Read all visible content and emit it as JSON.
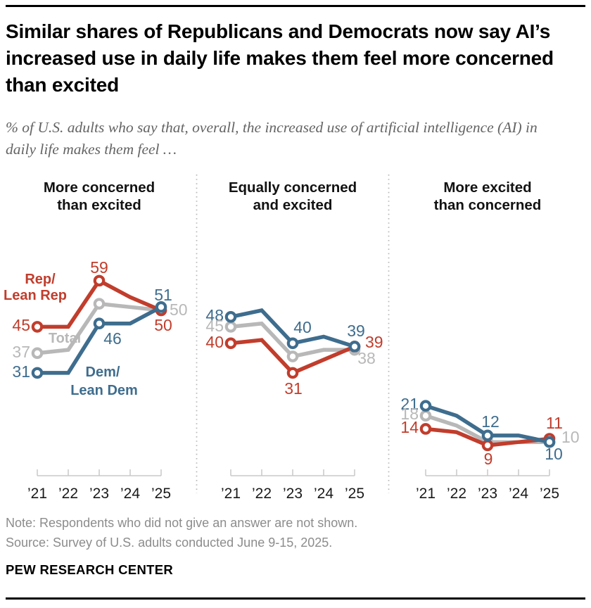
{
  "header": {
    "title": "Similar shares of Republicans and Democrats now say AI’s increased use in daily life makes them feel more concerned than excited",
    "subtitle": "% of U.S. adults who say that, overall, the increased use of artificial intelligence (AI) in daily life makes them feel …"
  },
  "footer": {
    "note": "Note: Respondents who did not give an answer are not shown.",
    "source": "Source: Survey of U.S. adults conducted June 9-15, 2025.",
    "brand": "PEW RESEARCH CENTER"
  },
  "chart_data": {
    "type": "line",
    "unit": "%",
    "x": [
      "’21",
      "’22",
      "’23",
      "’24",
      "’25"
    ],
    "labeled_years": [
      "’21",
      "’23",
      "’25"
    ],
    "ylim": [
      0,
      65
    ],
    "grid": false,
    "colors": {
      "rep": "#c13d2c",
      "total": "#b8b8b8",
      "dem": "#3e6d8e"
    },
    "legend": {
      "rep": [
        "Rep/",
        "Lean Rep"
      ],
      "total": [
        "Total"
      ],
      "dem": [
        "Dem/",
        "Lean Dem"
      ]
    },
    "panels": [
      {
        "title_lines": [
          "More concerned",
          "than excited"
        ],
        "series": [
          {
            "name": "Rep/Lean Rep",
            "color": "#c13d2c",
            "values": [
              45,
              45,
              59,
              54,
              50
            ]
          },
          {
            "name": "Total",
            "color": "#b8b8b8",
            "values": [
              37,
              38,
              52,
              51,
              50
            ]
          },
          {
            "name": "Dem/Lean Dem",
            "color": "#3e6d8e",
            "values": [
              31,
              31,
              46,
              46,
              51
            ]
          }
        ]
      },
      {
        "title_lines": [
          "Equally concerned",
          "and excited"
        ],
        "series": [
          {
            "name": "Rep/Lean Rep",
            "color": "#c13d2c",
            "values": [
              40,
              41,
              31,
              35,
              39
            ]
          },
          {
            "name": "Total",
            "color": "#b8b8b8",
            "values": [
              45,
              46,
              36,
              38,
              38
            ]
          },
          {
            "name": "Dem/Lean Dem",
            "color": "#3e6d8e",
            "values": [
              48,
              50,
              40,
              42,
              39
            ]
          }
        ]
      },
      {
        "title_lines": [
          "More excited",
          "than concerned"
        ],
        "series": [
          {
            "name": "Rep/Lean Rep",
            "color": "#c13d2c",
            "values": [
              14,
              13,
              9,
              10,
              11
            ]
          },
          {
            "name": "Total",
            "color": "#b8b8b8",
            "values": [
              18,
              15,
              10,
              10,
              10
            ]
          },
          {
            "name": "Dem/Lean Dem",
            "color": "#3e6d8e",
            "values": [
              21,
              18,
              12,
              12,
              10
            ]
          }
        ]
      }
    ]
  }
}
